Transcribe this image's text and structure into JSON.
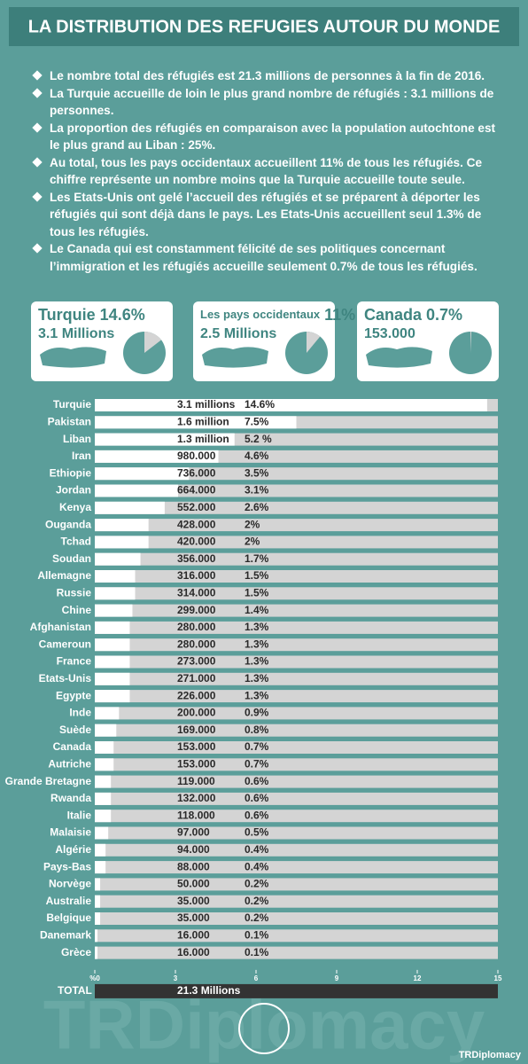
{
  "header": {
    "title": "LA DISTRIBUTION DES REFUGIES AUTOUR DU MONDE"
  },
  "bullets": [
    "Le nombre total des réfugiés est 21.3 millions de personnes à la fin de 2016.",
    "La Turquie accueille de loin le plus grand nombre de réfugiés : 3.1 millions de personnes.",
    "La proportion des réfugiés en comparaison avec la population autochtone est le plus grand au Liban : 25%.",
    "Au total, tous les pays occidentaux accueillent 11% de tous les réfugiés. Ce chiffre représente un nombre moins que la Turquie accueille toute seule.",
    "Les Etats-Unis ont gelé l’accueil des réfugiés et se préparent à déporter les réfugiés qui sont déjà dans le pays. Les Etats-Unis accueillent seul 1.3% de tous les réfugiés.",
    "Le Canada qui est constamment félicité de ses politiques concernant l’immigration et les réfugiés accueille seulement 0.7% de tous les réfugiés."
  ],
  "cards": [
    {
      "name": "Turquie",
      "share": 14.6,
      "share_label": "14.6%",
      "count": "3.1 Millions"
    },
    {
      "name": "Les pays occidentaux",
      "share": 11,
      "share_label": "11%",
      "count": "2.5 Millions"
    },
    {
      "name": "Canada",
      "share": 0.7,
      "share_label": "0.7%",
      "count": "153.000"
    }
  ],
  "chart_data": {
    "type": "hbar",
    "categories": [
      "Turquie",
      "Pakistan",
      "Liban",
      "Iran",
      "Ethiopie",
      "Jordan",
      "Kenya",
      "Ouganda",
      "Tchad",
      "Soudan",
      "Allemagne",
      "Russie",
      "Chine",
      "Afghanistan",
      "Cameroun",
      "France",
      "Etats-Unis",
      "Egypte",
      "Inde",
      "Suède",
      "Canada",
      "Autriche",
      "Grande Bretagne",
      "Rwanda",
      "Italie",
      "Malaisie",
      "Algérie",
      "Pays-Bas",
      "Norvège",
      "Australie",
      "Belgique",
      "Danemark",
      "Grèce"
    ],
    "values": [
      14.6,
      7.5,
      5.2,
      4.6,
      3.5,
      3.1,
      2.6,
      2,
      2,
      1.7,
      1.5,
      1.5,
      1.4,
      1.3,
      1.3,
      1.3,
      1.3,
      1.3,
      0.9,
      0.8,
      0.7,
      0.7,
      0.6,
      0.6,
      0.6,
      0.5,
      0.4,
      0.4,
      0.2,
      0.2,
      0.2,
      0.1,
      0.1
    ],
    "value_labels": [
      "14.6%",
      "7.5%",
      "5.2 %",
      "4.6%",
      "3.5%",
      "3.1%",
      "2.6%",
      "2%",
      "2%",
      "1.7%",
      "1.5%",
      "1.5%",
      "1.4%",
      "1.3%",
      "1.3%",
      "1.3%",
      "1.3%",
      "1.3%",
      "0.9%",
      "0.8%",
      "0.7%",
      "0.7%",
      "0.6%",
      "0.6%",
      "0.6%",
      "0.5%",
      "0.4%",
      "0.4%",
      "0.2%",
      "0.2%",
      "0.2%",
      "0.1%",
      "0.1%"
    ],
    "count_labels": [
      "3.1 millions",
      "1.6 million",
      "1.3 million",
      "980.000",
      "736.000",
      "664.000",
      "552.000",
      "428.000",
      "420.000",
      "356.000",
      "316.000",
      "314.000",
      "299.000",
      "280.000",
      "280.000",
      "273.000",
      "271.000",
      "226.000",
      "200.000",
      "169.000",
      "153.000",
      "153.000",
      "119.000",
      "132.000",
      "118.000",
      "97.000",
      "94.000",
      "88.000",
      "50.000",
      "35.000",
      "35.000",
      "16.000",
      "16.000"
    ],
    "color": "#ffffff",
    "track_color": "#d4d4d4",
    "xlim": [
      0,
      15
    ],
    "xticks": [
      {
        "value": 0,
        "label": "%0"
      },
      3,
      6,
      9,
      12,
      15
    ],
    "total_label": "TOTAL",
    "total_value": "21.3 Millions"
  },
  "footer": {
    "watermark": "TRDiplomacy",
    "handle": "TRDiplomacy"
  }
}
